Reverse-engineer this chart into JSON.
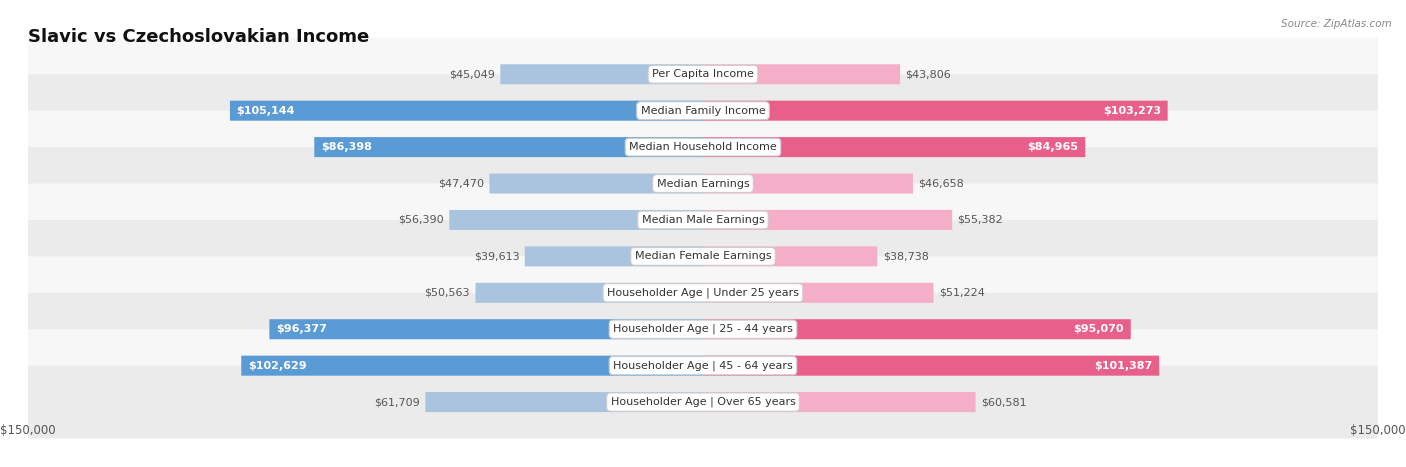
{
  "title": "Slavic vs Czechoslovakian Income",
  "source": "Source: ZipAtlas.com",
  "max_value": 150000,
  "categories": [
    "Per Capita Income",
    "Median Family Income",
    "Median Household Income",
    "Median Earnings",
    "Median Male Earnings",
    "Median Female Earnings",
    "Householder Age | Under 25 years",
    "Householder Age | 25 - 44 years",
    "Householder Age | 45 - 64 years",
    "Householder Age | Over 65 years"
  ],
  "slavic_values": [
    45049,
    105144,
    86398,
    47470,
    56390,
    39613,
    50563,
    96377,
    102629,
    61709
  ],
  "czech_values": [
    43806,
    103273,
    84965,
    46658,
    55382,
    38738,
    51224,
    95070,
    101387,
    60581
  ],
  "slavic_labels": [
    "$45,049",
    "$105,144",
    "$86,398",
    "$47,470",
    "$56,390",
    "$39,613",
    "$50,563",
    "$96,377",
    "$102,629",
    "$61,709"
  ],
  "czech_labels": [
    "$43,806",
    "$103,273",
    "$84,965",
    "$46,658",
    "$55,382",
    "$38,738",
    "$51,224",
    "$95,070",
    "$101,387",
    "$60,581"
  ],
  "slavic_color_light": "#aac4e0",
  "slavic_color_dark": "#5b9bd5",
  "czech_color_light": "#f5aec8",
  "czech_color_dark": "#e8608a",
  "threshold": 80000,
  "background_color": "#ffffff",
  "row_bg_even": "#f7f7f7",
  "row_bg_odd": "#ebebeb",
  "title_fontsize": 13,
  "label_fontsize": 8,
  "category_fontsize": 8
}
